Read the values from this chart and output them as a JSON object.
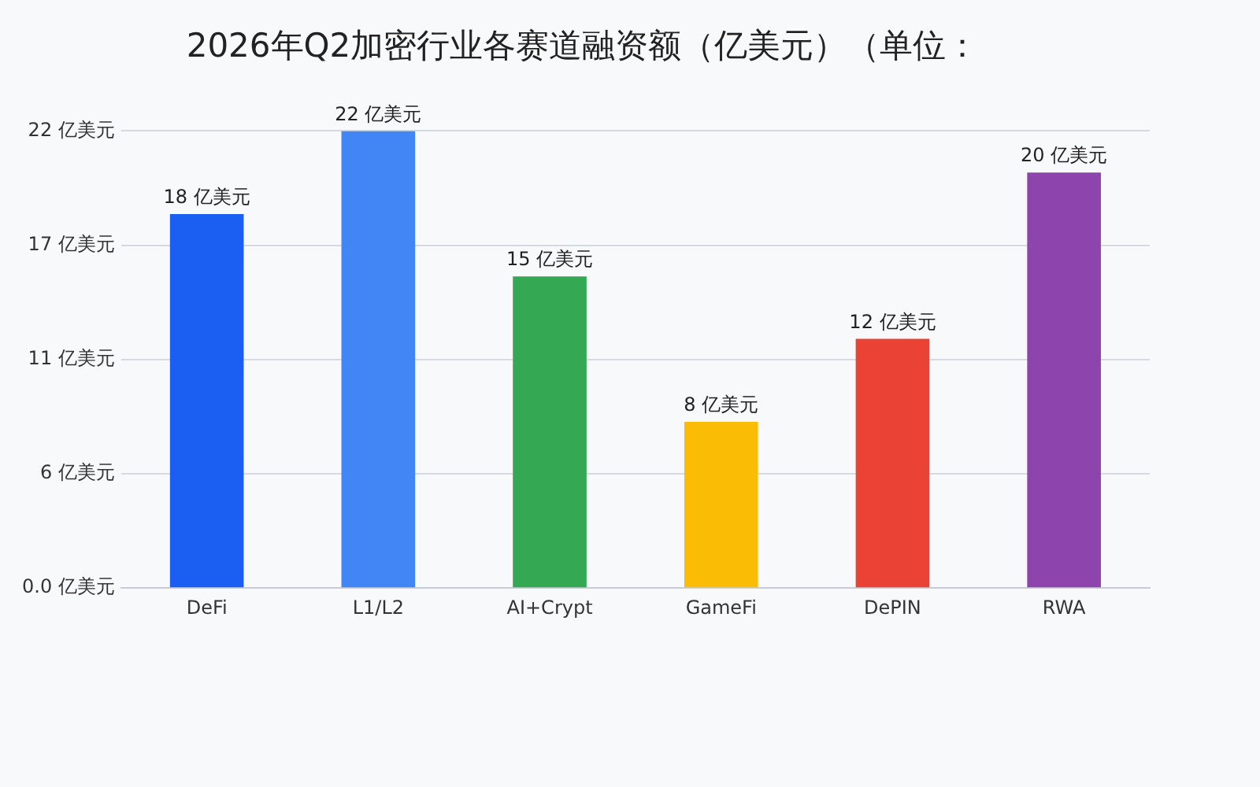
{
  "chart_data": {
    "type": "bar",
    "title": "2026年Q2加密行业各赛道融资额（亿美元）（单位：",
    "categories": [
      "DeFi",
      "L1/L2",
      "AI+Crypt",
      "GameFi",
      "DePIN",
      "RWA"
    ],
    "values": [
      18,
      22,
      15,
      8,
      12,
      20
    ],
    "colors": [
      "#1a5ff2",
      "#4285f4",
      "#34a853",
      "#fbbc05",
      "#ea4335",
      "#8e44ad"
    ],
    "value_labels": [
      "18 亿美元",
      "22 亿美元",
      "15 亿美元",
      "8 亿美元",
      "12 亿美元",
      "20 亿美元"
    ],
    "ylim": [
      0,
      22
    ],
    "yticks": [
      {
        "value": 0,
        "label": "0.0 亿美元"
      },
      {
        "value": 5.5,
        "label": "6 亿美元"
      },
      {
        "value": 11,
        "label": "11 亿美元"
      },
      {
        "value": 16.5,
        "label": "17 亿美元"
      },
      {
        "value": 22,
        "label": "22 亿美元"
      }
    ],
    "grid": "y",
    "legend": false
  }
}
